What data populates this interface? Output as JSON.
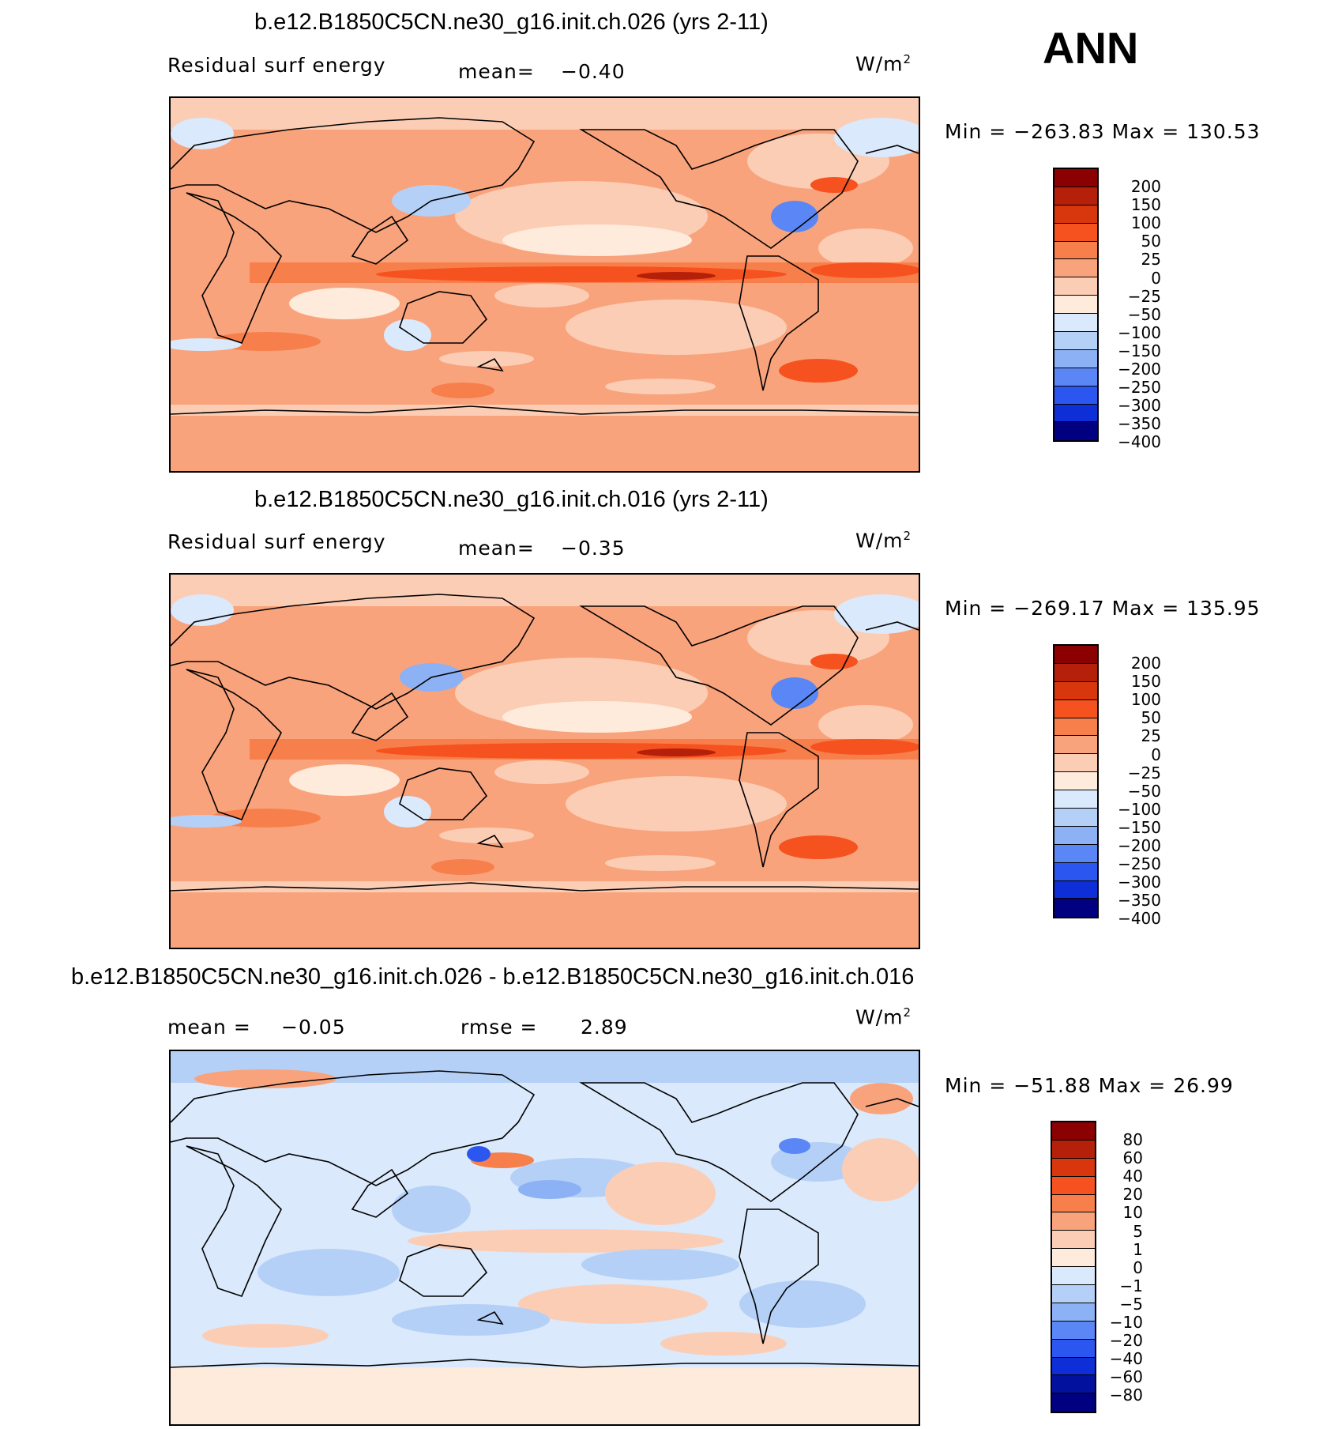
{
  "season": "ANN",
  "panels": [
    {
      "title": "b.e12.B1850C5CN.ne30_g16.init.ch.026 (yrs 2-11)",
      "variable": "Residual surf energy",
      "stat_label": "mean=",
      "stat_value": "−0.40",
      "units": "W/m",
      "units_exp": "2",
      "minmax": "Min = −263.83 Max = 130.53",
      "cbar_labels": [
        "200",
        "150",
        "100",
        "50",
        "25",
        "0",
        "−25",
        "−50",
        "−100",
        "−150",
        "−200",
        "−250",
        "−300",
        "−350",
        "−400"
      ]
    },
    {
      "title": "b.e12.B1850C5CN.ne30_g16.init.ch.016 (yrs 2-11)",
      "variable": "Residual surf energy",
      "stat_label": "mean=",
      "stat_value": "−0.35",
      "units": "W/m",
      "units_exp": "2",
      "minmax": "Min = −269.17 Max = 135.95",
      "cbar_labels": [
        "200",
        "150",
        "100",
        "50",
        "25",
        "0",
        "−25",
        "−50",
        "−100",
        "−150",
        "−200",
        "−250",
        "−300",
        "−350",
        "−400"
      ]
    },
    {
      "title": "b.e12.B1850C5CN.ne30_g16.init.ch.026 - b.e12.B1850C5CN.ne30_g16.init.ch.016",
      "mean_label": "mean =",
      "mean_value": "−0.05",
      "rmse_label": "rmse =",
      "rmse_value": "2.89",
      "units": "W/m",
      "units_exp": "2",
      "minmax": "Min = −51.88 Max =   26.99",
      "cbar_labels": [
        "80",
        "60",
        "40",
        "20",
        "10",
        "5",
        "1",
        "0",
        "−1",
        "−5",
        "−10",
        "−20",
        "−40",
        "−60",
        "−80"
      ]
    }
  ],
  "colors": {
    "cbar": [
      "#8b0000",
      "#b5200a",
      "#d8360d",
      "#f5521f",
      "#f77f4c",
      "#f9a37c",
      "#fccdb5",
      "#feebdc",
      "#dae9fb",
      "#b5d0f7",
      "#8db1f5",
      "#5a87f5",
      "#2b57f0",
      "#0e2fd8",
      "#02129e",
      "#000080"
    ],
    "diff_cbar": [
      "#8b0000",
      "#b5200a",
      "#d8360d",
      "#f5521f",
      "#f77f4c",
      "#f9a37c",
      "#fccdb5",
      "#feebdc",
      "#dae9fb",
      "#b5d0f7",
      "#8db1f5",
      "#5a87f5",
      "#2b57f0",
      "#0e2fd8",
      "#02129e",
      "#000080"
    ]
  }
}
